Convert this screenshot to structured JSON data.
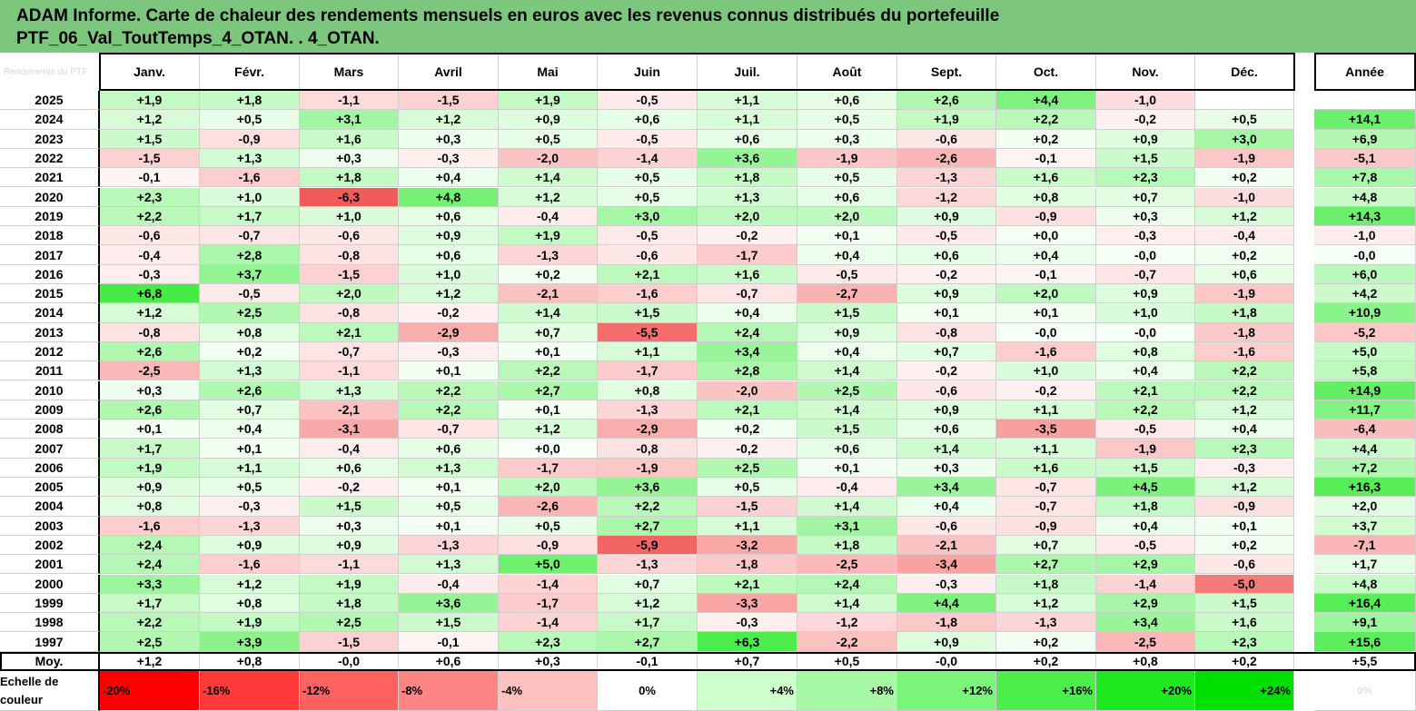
{
  "title_line1": "ADAM Informe. Carte de chaleur des rendements mensuels en euros avec les revenus connus distribués du portefeuille",
  "title_line2": "PTF_06_Val_ToutTemps_4_OTAN. . 4_OTAN.",
  "corner_ghost": "Rendements du PTF",
  "chart_data": {
    "type": "heatmap",
    "title": "ADAM Informe. Carte de chaleur des rendements mensuels en euros avec les revenus connus distribués du portefeuille PTF_06_Val_ToutTemps_4_OTAN. . 4_OTAN.",
    "months": [
      "Janv.",
      "Févr.",
      "Mars",
      "Avril",
      "Mai",
      "Juin",
      "Juil.",
      "Août",
      "Sept.",
      "Oct.",
      "Nov.",
      "Déc."
    ],
    "annual_label": "Année",
    "rows": [
      {
        "year": "2025",
        "values": [
          "+1,9",
          "+1,8",
          "-1,1",
          "-1,5",
          "+1,9",
          "-0,5",
          "+1,1",
          "+0,6",
          "+2,6",
          "+4,4",
          "-1,0",
          ""
        ],
        "annual": ""
      },
      {
        "year": "2024",
        "values": [
          "+1,2",
          "+0,5",
          "+3,1",
          "+1,2",
          "+0,9",
          "+0,6",
          "+1,1",
          "+0,5",
          "+1,9",
          "+2,2",
          "-0,2",
          "+0,5"
        ],
        "annual": "+14,1"
      },
      {
        "year": "2023",
        "values": [
          "+1,5",
          "-0,9",
          "+1,6",
          "+0,3",
          "+0,5",
          "-0,5",
          "+0,6",
          "+0,3",
          "-0,6",
          "+0,2",
          "+0,9",
          "+3,0"
        ],
        "annual": "+6,9"
      },
      {
        "year": "2022",
        "values": [
          "-1,5",
          "+1,3",
          "+0,3",
          "-0,3",
          "-2,0",
          "-1,4",
          "+3,6",
          "-1,9",
          "-2,6",
          "-0,1",
          "+1,5",
          "-1,9"
        ],
        "annual": "-5,1"
      },
      {
        "year": "2021",
        "values": [
          "-0,1",
          "-1,6",
          "+1,8",
          "+0,4",
          "+1,4",
          "+0,5",
          "+1,8",
          "+0,5",
          "-1,3",
          "+1,6",
          "+2,3",
          "+0,2"
        ],
        "annual": "+7,8"
      },
      {
        "year": "2020",
        "values": [
          "+2,3",
          "+1,0",
          "-6,3",
          "+4,8",
          "+1,2",
          "+0,5",
          "+1,3",
          "+0,6",
          "-1,2",
          "+0,8",
          "+0,7",
          "-1,0"
        ],
        "annual": "+4,8"
      },
      {
        "year": "2019",
        "values": [
          "+2,2",
          "+1,7",
          "+1,0",
          "+0,6",
          "-0,4",
          "+3,0",
          "+2,0",
          "+2,0",
          "+0,9",
          "-0,9",
          "+0,3",
          "+1,2"
        ],
        "annual": "+14,3"
      },
      {
        "year": "2018",
        "values": [
          "-0,6",
          "-0,7",
          "-0,6",
          "+0,9",
          "+1,9",
          "-0,5",
          "-0,2",
          "+0,1",
          "-0,5",
          "+0,0",
          "-0,3",
          "-0,4"
        ],
        "annual": "-1,0"
      },
      {
        "year": "2017",
        "values": [
          "-0,4",
          "+2,8",
          "-0,8",
          "+0,6",
          "-1,3",
          "-0,6",
          "-1,7",
          "+0,4",
          "+0,6",
          "+0,4",
          "-0,0",
          "+0,2"
        ],
        "annual": "-0,0"
      },
      {
        "year": "2016",
        "values": [
          "-0,3",
          "+3,7",
          "-1,5",
          "+1,0",
          "+0,2",
          "+2,1",
          "+1,6",
          "-0,5",
          "-0,2",
          "-0,1",
          "-0,7",
          "+0,6"
        ],
        "annual": "+6,0"
      },
      {
        "year": "2015",
        "values": [
          "+6,8",
          "-0,5",
          "+2,0",
          "+1,2",
          "-2,1",
          "-1,6",
          "-0,7",
          "-2,7",
          "+0,9",
          "+2,0",
          "+0,9",
          "-1,9"
        ],
        "annual": "+4,2"
      },
      {
        "year": "2014",
        "values": [
          "+1,2",
          "+2,5",
          "-0,8",
          "-0,2",
          "+1,4",
          "+1,5",
          "+0,4",
          "+1,5",
          "+0,1",
          "+0,1",
          "+1,0",
          "+1,8"
        ],
        "annual": "+10,9"
      },
      {
        "year": "2013",
        "values": [
          "-0,8",
          "+0,8",
          "+2,1",
          "-2,9",
          "+0,7",
          "-5,5",
          "+2,4",
          "+0,9",
          "-0,8",
          "-0,0",
          "-0,0",
          "-1,8"
        ],
        "annual": "-5,2"
      },
      {
        "year": "2012",
        "values": [
          "+2,6",
          "+0,2",
          "-0,7",
          "-0,3",
          "+0,1",
          "+1,1",
          "+3,4",
          "+0,4",
          "+0,7",
          "-1,6",
          "+0,8",
          "-1,6"
        ],
        "annual": "+5,0"
      },
      {
        "year": "2011",
        "values": [
          "-2,5",
          "+1,3",
          "-1,1",
          "+0,1",
          "+2,2",
          "-1,7",
          "+2,8",
          "+1,4",
          "-0,2",
          "+1,0",
          "+0,4",
          "+2,2"
        ],
        "annual": "+5,8"
      },
      {
        "year": "2010",
        "values": [
          "+0,3",
          "+2,6",
          "+1,3",
          "+2,2",
          "+2,7",
          "+0,8",
          "-2,0",
          "+2,5",
          "-0,6",
          "-0,2",
          "+2,1",
          "+2,2"
        ],
        "annual": "+14,9"
      },
      {
        "year": "2009",
        "values": [
          "+2,6",
          "+0,7",
          "-2,1",
          "+2,2",
          "+0,1",
          "-1,3",
          "+2,1",
          "+1,4",
          "+0,9",
          "+1,1",
          "+2,2",
          "+1,2"
        ],
        "annual": "+11,7"
      },
      {
        "year": "2008",
        "values": [
          "+0,1",
          "+0,4",
          "-3,1",
          "-0,7",
          "+1,2",
          "-2,9",
          "+0,2",
          "+1,5",
          "+0,6",
          "-3,5",
          "-0,5",
          "+0,4"
        ],
        "annual": "-6,4"
      },
      {
        "year": "2007",
        "values": [
          "+1,7",
          "+0,1",
          "-0,4",
          "+0,6",
          "+0,0",
          "-0,8",
          "-0,2",
          "+0,6",
          "+1,4",
          "+1,1",
          "-1,9",
          "+2,3"
        ],
        "annual": "+4,4"
      },
      {
        "year": "2006",
        "values": [
          "+1,9",
          "+1,1",
          "+0,6",
          "+1,3",
          "-1,7",
          "-1,9",
          "+2,5",
          "+0,1",
          "+0,3",
          "+1,6",
          "+1,5",
          "-0,3"
        ],
        "annual": "+7,2"
      },
      {
        "year": "2005",
        "values": [
          "+0,9",
          "+0,5",
          "-0,2",
          "+0,1",
          "+2,0",
          "+3,6",
          "+0,5",
          "-0,4",
          "+3,4",
          "-0,7",
          "+4,5",
          "+1,2"
        ],
        "annual": "+16,3"
      },
      {
        "year": "2004",
        "values": [
          "+0,8",
          "-0,3",
          "+1,5",
          "+0,5",
          "-2,6",
          "+2,2",
          "-1,5",
          "+1,4",
          "+0,4",
          "-0,7",
          "+1,8",
          "-0,9"
        ],
        "annual": "+2,0"
      },
      {
        "year": "2003",
        "values": [
          "-1,6",
          "-1,3",
          "+0,3",
          "+0,1",
          "+0,5",
          "+2,7",
          "+1,1",
          "+3,1",
          "-0,6",
          "-0,9",
          "+0,4",
          "+0,1"
        ],
        "annual": "+3,7"
      },
      {
        "year": "2002",
        "values": [
          "+2,4",
          "+0,9",
          "+0,9",
          "-1,3",
          "-0,9",
          "-5,9",
          "-3,2",
          "+1,8",
          "-2,1",
          "+0,7",
          "-0,5",
          "+0,2"
        ],
        "annual": "-7,1"
      },
      {
        "year": "2001",
        "values": [
          "+2,4",
          "-1,6",
          "-1,1",
          "+1,3",
          "+5,0",
          "-1,3",
          "-1,8",
          "-2,5",
          "-3,4",
          "+2,7",
          "+2,9",
          "-0,6"
        ],
        "annual": "+1,7"
      },
      {
        "year": "2000",
        "values": [
          "+3,3",
          "+1,2",
          "+1,9",
          "-0,4",
          "-1,4",
          "+0,7",
          "+2,1",
          "+2,4",
          "-0,3",
          "+1,8",
          "-1,4",
          "-5,0"
        ],
        "annual": "+4,8"
      },
      {
        "year": "1999",
        "values": [
          "+1,7",
          "+0,8",
          "+1,8",
          "+3,6",
          "-1,7",
          "+1,2",
          "-3,3",
          "+1,4",
          "+4,4",
          "+1,2",
          "+2,9",
          "+1,5"
        ],
        "annual": "+16,4"
      },
      {
        "year": "1998",
        "values": [
          "+2,2",
          "+1,9",
          "+2,5",
          "+1,5",
          "-1,4",
          "+1,7",
          "-0,3",
          "-1,2",
          "-1,8",
          "-1,3",
          "+3,4",
          "+1,6"
        ],
        "annual": "+9,1"
      },
      {
        "year": "1997",
        "values": [
          "+2,5",
          "+3,9",
          "-1,5",
          "-0,1",
          "+2,3",
          "+2,7",
          "+6,3",
          "-2,2",
          "+0,9",
          "+0,2",
          "-2,5",
          "+2,3"
        ],
        "annual": "+15,6"
      }
    ],
    "average": {
      "label": "Moy.",
      "values": [
        "+1,2",
        "+0,8",
        "-0,0",
        "+0,6",
        "+0,3",
        "-0,1",
        "+0,7",
        "+0,5",
        "-0,0",
        "+0,2",
        "+0,8",
        "+0,2"
      ],
      "annual": "+5,5"
    },
    "color_scale": {
      "label": "Echelle de couleur",
      "stops": [
        "-20%",
        "-16%",
        "-12%",
        "-8%",
        "-4%",
        "0%",
        "+4%",
        "+8%",
        "+12%",
        "+16%",
        "+20%",
        "+24%"
      ],
      "ghost": "0%"
    }
  }
}
